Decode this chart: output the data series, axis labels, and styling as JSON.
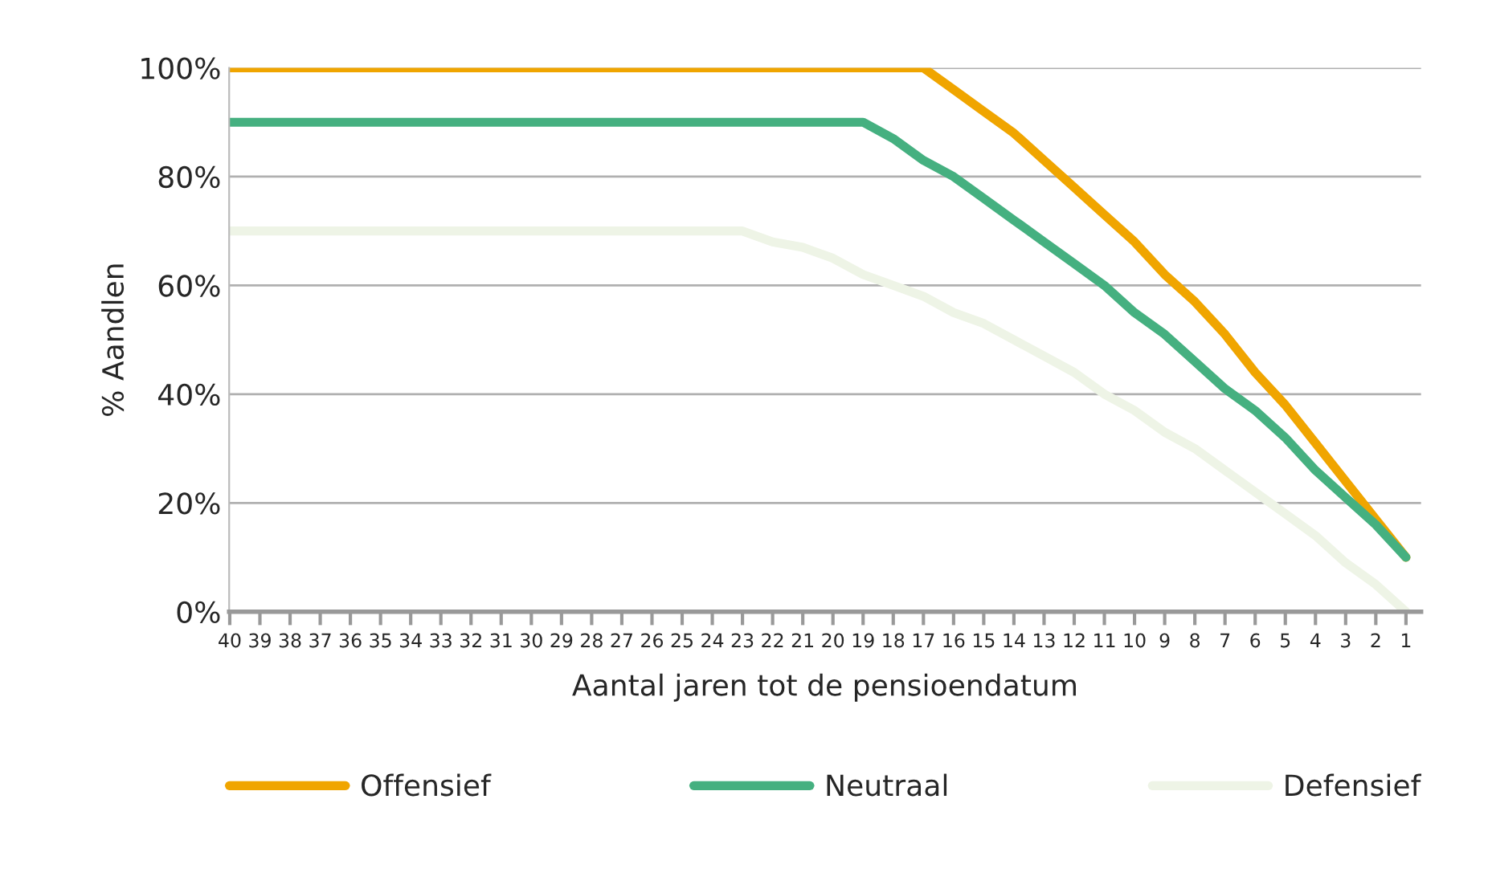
{
  "chart_data": {
    "type": "line",
    "xlabel": "Aantal jaren tot de pensioendatum",
    "ylabel": "% Aandlen",
    "categories": [
      "40",
      "39",
      "38",
      "37",
      "36",
      "35",
      "34",
      "33",
      "32",
      "31",
      "30",
      "29",
      "28",
      "27",
      "26",
      "25",
      "24",
      "23",
      "22",
      "21",
      "20",
      "19",
      "18",
      "17",
      "16",
      "15",
      "14",
      "13",
      "12",
      "11",
      "10",
      "9",
      "8",
      "7",
      "6",
      "5",
      "4",
      "3",
      "2",
      "1"
    ],
    "series": [
      {
        "name": "Offensief",
        "color": "#f0a500",
        "values": [
          100,
          100,
          100,
          100,
          100,
          100,
          100,
          100,
          100,
          100,
          100,
          100,
          100,
          100,
          100,
          100,
          100,
          100,
          100,
          100,
          100,
          100,
          100,
          100,
          96,
          92,
          88,
          83,
          78,
          73,
          68,
          62,
          57,
          51,
          44,
          38,
          31,
          24,
          17,
          10
        ]
      },
      {
        "name": "Neutraal",
        "color": "#45b080",
        "values": [
          90,
          90,
          90,
          90,
          90,
          90,
          90,
          90,
          90,
          90,
          90,
          90,
          90,
          90,
          90,
          90,
          90,
          90,
          90,
          90,
          90,
          90,
          87,
          83,
          80,
          76,
          72,
          68,
          64,
          60,
          55,
          51,
          46,
          41,
          37,
          32,
          26,
          21,
          16,
          10
        ]
      },
      {
        "name": "Defensief",
        "color": "#eef4e6",
        "values": [
          70,
          70,
          70,
          70,
          70,
          70,
          70,
          70,
          70,
          70,
          70,
          70,
          70,
          70,
          70,
          70,
          70,
          70,
          68,
          67,
          65,
          62,
          60,
          58,
          55,
          53,
          50,
          47,
          44,
          40,
          37,
          33,
          30,
          26,
          22,
          18,
          14,
          9,
          5,
          0
        ]
      }
    ],
    "ylim": [
      0,
      100
    ],
    "yticks": [
      {
        "value": 0,
        "label": "0%"
      },
      {
        "value": 20,
        "label": "20%"
      },
      {
        "value": 40,
        "label": "40%"
      },
      {
        "value": 60,
        "label": "60%"
      },
      {
        "value": 80,
        "label": "80%"
      },
      {
        "value": 100,
        "label": "100%"
      }
    ],
    "grid": "y",
    "legend": "bottom",
    "marker": "none",
    "line_style": "solid"
  }
}
